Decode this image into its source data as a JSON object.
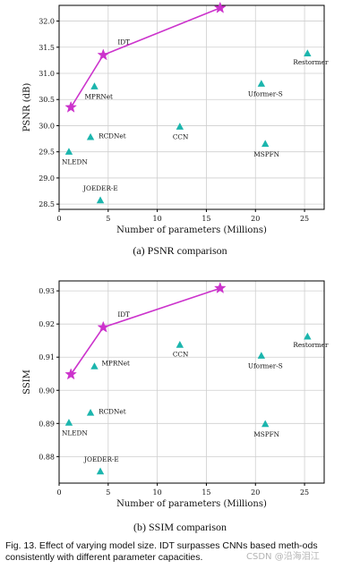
{
  "chart_data": [
    {
      "type": "scatter",
      "xlabel": "Number of parameters (Millions)",
      "ylabel": "PSNR (dB)",
      "xlim": [
        0,
        27
      ],
      "ylim": [
        28.4,
        32.3
      ],
      "xticks": [
        0,
        5,
        10,
        15,
        20,
        25
      ],
      "yticks": [
        28.5,
        29.0,
        29.5,
        30.0,
        30.5,
        31.0,
        31.5,
        32.0
      ],
      "ytick_labels": [
        "28.5",
        "29.0",
        "29.5",
        "30.0",
        "30.5",
        "31.0",
        "31.5",
        "32.0"
      ],
      "grid": true,
      "line_series": {
        "x": [
          1.2,
          4.5,
          16.4
        ],
        "y": [
          30.35,
          31.35,
          32.25
        ]
      },
      "points": [
        {
          "label": "NLEDN",
          "x": 1.0,
          "y": 29.5,
          "marker": "triangle",
          "lx": -8,
          "ly": 14
        },
        {
          "label": "RCDNet",
          "x": 3.2,
          "y": 29.78,
          "marker": "triangle",
          "lx": 9,
          "ly": 1
        },
        {
          "label": "MPRNet",
          "x": 3.6,
          "y": 30.75,
          "marker": "triangle",
          "lx": -11,
          "ly": 14
        },
        {
          "label": "JOEDER-E",
          "x": 4.2,
          "y": 28.57,
          "marker": "triangle",
          "lx": -19,
          "ly": -11
        },
        {
          "label": "CCN",
          "x": 12.3,
          "y": 29.98,
          "marker": "triangle",
          "lx": -8,
          "ly": 14
        },
        {
          "label": "Uformer-S",
          "x": 20.6,
          "y": 30.8,
          "marker": "triangle",
          "lx": -15,
          "ly": 14
        },
        {
          "label": "MSPFN",
          "x": 21.0,
          "y": 29.65,
          "marker": "triangle",
          "lx": -13,
          "ly": 14
        },
        {
          "label": "Restormer",
          "x": 25.3,
          "y": 31.38,
          "marker": "triangle",
          "lx": -16,
          "ly": 12
        },
        {
          "label": "IDT",
          "x": 4.5,
          "y": 31.35,
          "marker": "star",
          "lx": 16,
          "ly": -12
        }
      ]
    },
    {
      "type": "scatter",
      "xlabel": "Number of parameters (Millions)",
      "ylabel": "SSIM",
      "xlim": [
        0,
        27
      ],
      "ylim": [
        0.872,
        0.933
      ],
      "xticks": [
        0,
        5,
        10,
        15,
        20,
        25
      ],
      "yticks": [
        0.88,
        0.89,
        0.9,
        0.91,
        0.92,
        0.93
      ],
      "ytick_labels": [
        "0.88",
        "0.89",
        "0.90",
        "0.91",
        "0.92",
        "0.93"
      ],
      "grid": true,
      "line_series": {
        "x": [
          1.2,
          4.5,
          16.4
        ],
        "y": [
          0.9048,
          0.919,
          0.9308
        ]
      },
      "points": [
        {
          "label": "NLEDN",
          "x": 1.0,
          "y": 0.8902,
          "marker": "triangle",
          "lx": -8,
          "ly": 14
        },
        {
          "label": "RCDNet",
          "x": 3.2,
          "y": 0.8932,
          "marker": "triangle",
          "lx": 9,
          "ly": 1
        },
        {
          "label": "MPRNet",
          "x": 3.6,
          "y": 0.9072,
          "marker": "triangle",
          "lx": 8,
          "ly": -1
        },
        {
          "label": "JOEDER-E",
          "x": 4.2,
          "y": 0.8755,
          "marker": "triangle",
          "lx": -18,
          "ly": -11
        },
        {
          "label": "CCN",
          "x": 12.3,
          "y": 0.9137,
          "marker": "triangle",
          "lx": -8,
          "ly": 13
        },
        {
          "label": "Uformer-S",
          "x": 20.6,
          "y": 0.9104,
          "marker": "triangle",
          "lx": -15,
          "ly": 14
        },
        {
          "label": "MSPFN",
          "x": 21.0,
          "y": 0.8898,
          "marker": "triangle",
          "lx": -13,
          "ly": 14
        },
        {
          "label": "Restormer",
          "x": 25.3,
          "y": 0.9162,
          "marker": "triangle",
          "lx": -16,
          "ly": 12
        },
        {
          "label": "IDT",
          "x": 4.5,
          "y": 0.919,
          "marker": "star",
          "lx": 16,
          "ly": -12
        }
      ]
    }
  ],
  "colors": {
    "markers": "#1bb5ad",
    "line": "#cc33cc",
    "grid": "#cfcfcf",
    "axes": "#000000"
  },
  "captions": {
    "psnr": "(a)  PSNR comparison",
    "ssim": "(b)  SSIM comparison",
    "figure": "Fig. 13. Effect of varying model size. IDT surpasses CNNs based meth-ods consistently with different parameter capacities.",
    "watermark": "CSDN @沿海泪江"
  }
}
